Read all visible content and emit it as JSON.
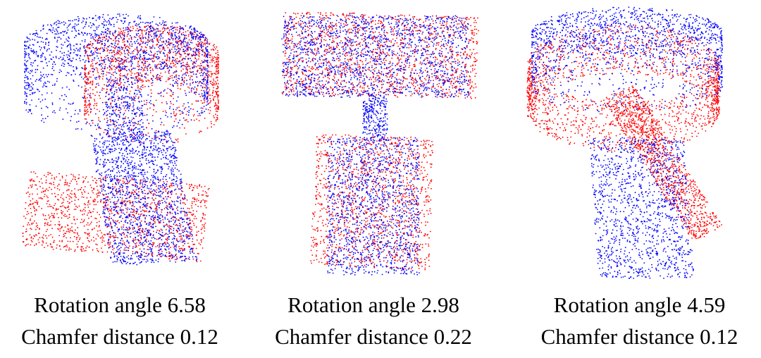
{
  "colors": {
    "source_points": "#ff0000",
    "target_points": "#0000ff",
    "background": "#ffffff"
  },
  "panels": [
    {
      "rotation_caption": "Rotation angle 6.58",
      "chamfer_caption": "Chamfer distance 0.12",
      "rotation_angle": 6.58,
      "chamfer_distance": 0.12
    },
    {
      "rotation_caption": "Rotation angle 2.98",
      "chamfer_caption": "Chamfer distance 0.22",
      "rotation_angle": 2.98,
      "chamfer_distance": 0.22
    },
    {
      "rotation_caption": "Rotation angle 4.59",
      "chamfer_caption": "Chamfer distance 0.12",
      "rotation_angle": 4.59,
      "chamfer_distance": 0.12
    }
  ]
}
